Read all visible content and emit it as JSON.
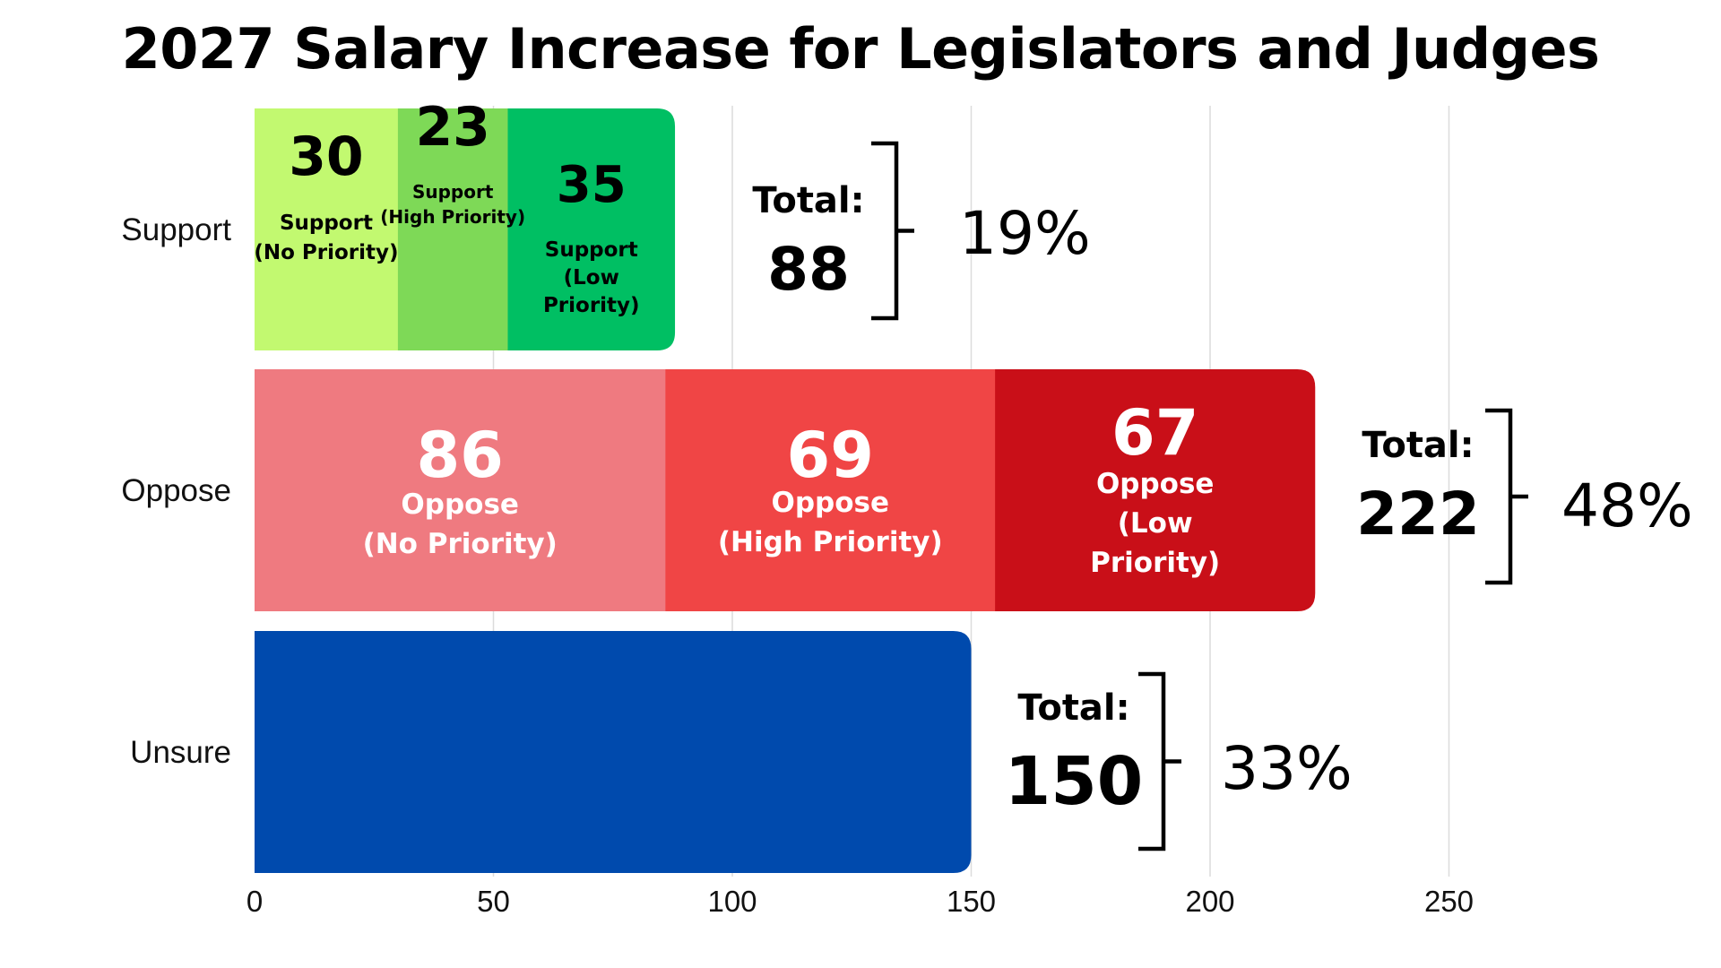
{
  "chart_data": {
    "type": "bar",
    "orientation": "horizontal",
    "stacked": true,
    "title": "2027 Salary Increase for Legislators and Judges",
    "xlabel": "",
    "ylabel": "",
    "xlim": [
      0,
      275
    ],
    "x_ticks": [
      0,
      50,
      100,
      150,
      200,
      250
    ],
    "grid": "vertical",
    "categories": [
      "Support",
      "Oppose",
      "Unsure"
    ],
    "bars": [
      {
        "category": "Support",
        "total_label": "Total:",
        "total": "88",
        "percent": "19%",
        "segments": [
          {
            "value": 30,
            "label_value": "30",
            "label_lines": [
              "Support",
              "(No Priority)"
            ],
            "color": "#c2f970",
            "text_color": "#000000"
          },
          {
            "value": 23,
            "label_value": "23",
            "label_lines": [
              "Support",
              "(High Priority)"
            ],
            "color": "#7ed957",
            "text_color": "#000000"
          },
          {
            "value": 35,
            "label_value": "35",
            "label_lines": [
              "Support",
              "(Low",
              "Priority)"
            ],
            "color": "#00bf63",
            "text_color": "#000000"
          }
        ]
      },
      {
        "category": "Oppose",
        "total_label": "Total:",
        "total": "222",
        "percent": "48%",
        "segments": [
          {
            "value": 86,
            "label_value": "86",
            "label_lines": [
              "Oppose",
              "(No Priority)"
            ],
            "color": "#ef7a80",
            "text_color": "#ffffff"
          },
          {
            "value": 69,
            "label_value": "69",
            "label_lines": [
              "Oppose",
              "(High Priority)"
            ],
            "color": "#f04545",
            "text_color": "#ffffff"
          },
          {
            "value": 67,
            "label_value": "67",
            "label_lines": [
              "Oppose",
              "(Low",
              "Priority)"
            ],
            "color": "#c90f18",
            "text_color": "#ffffff"
          }
        ]
      },
      {
        "category": "Unsure",
        "total_label": "Total:",
        "total": "150",
        "percent": "33%",
        "segments": [
          {
            "value": 150,
            "label_value": "",
            "label_lines": [],
            "color": "#004aad",
            "text_color": "#ffffff"
          }
        ]
      }
    ]
  }
}
